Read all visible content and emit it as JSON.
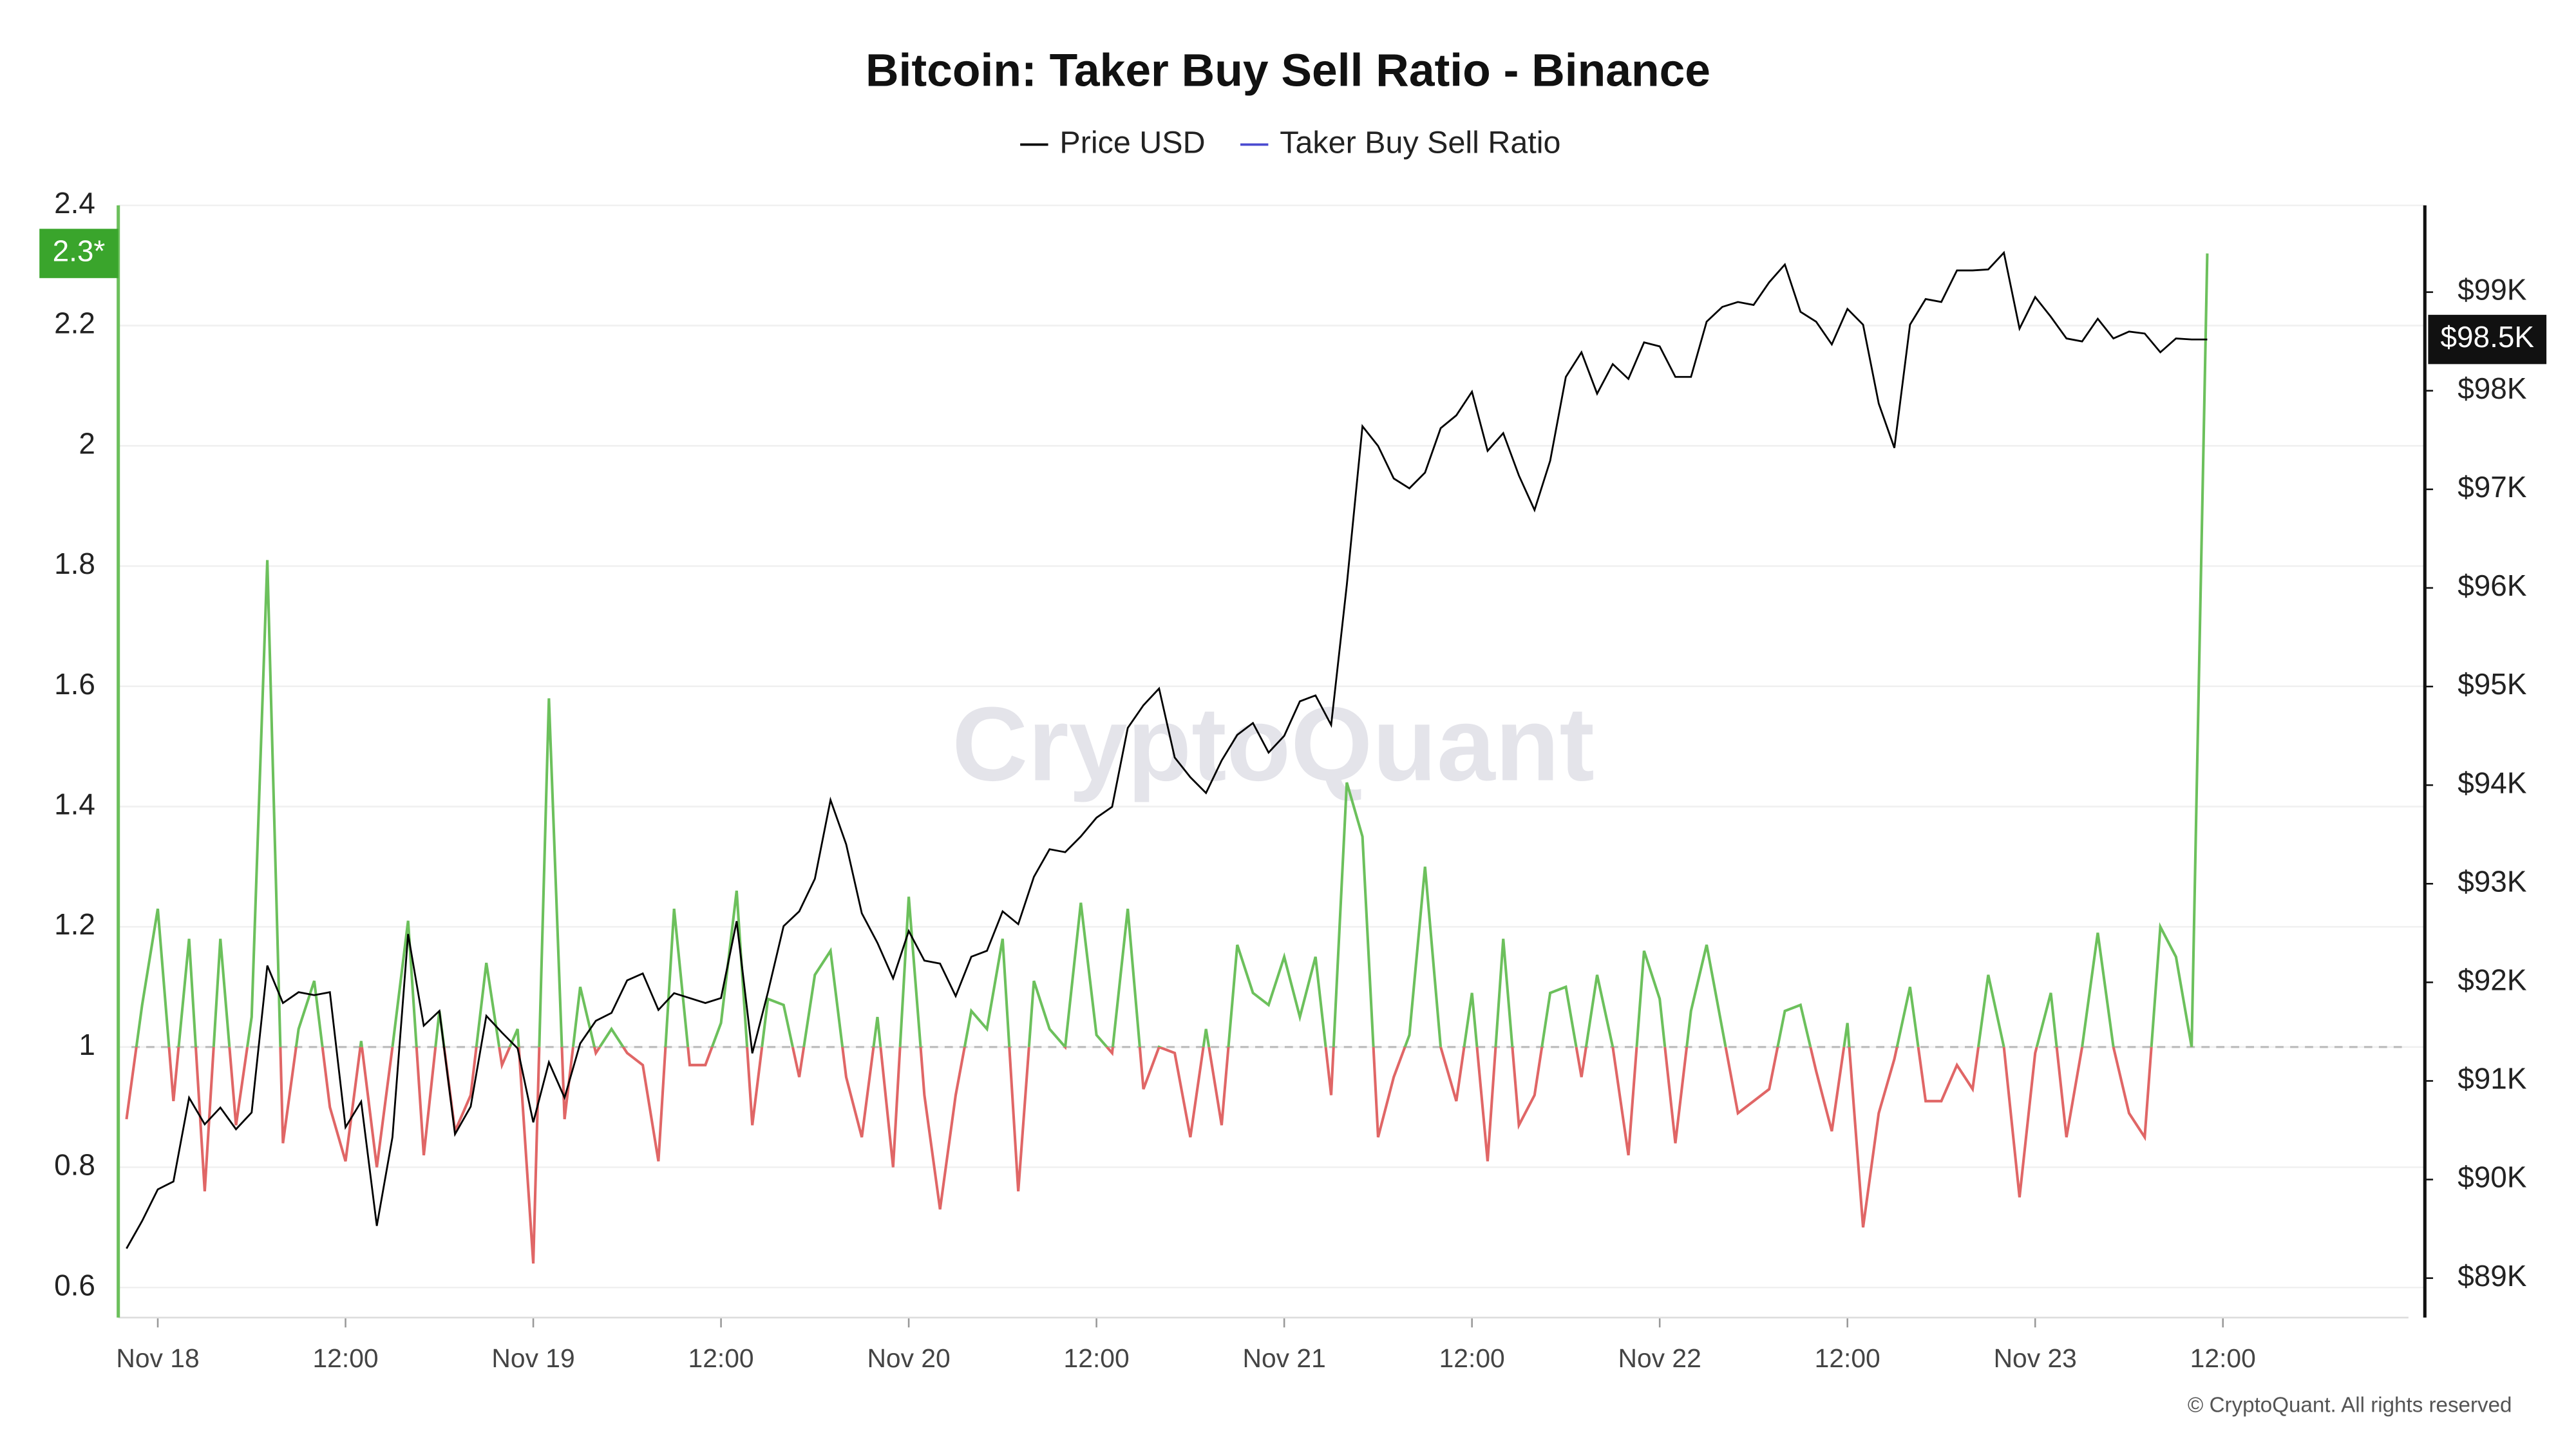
{
  "chart_data": {
    "type": "line",
    "title": "Bitcoin: Taker Buy Sell Ratio - Binance",
    "legend": "top",
    "grid": true,
    "watermark": "CryptoQuant",
    "footer": "© CryptoQuant. All rights reserved",
    "x": [
      "Nov 17 22:00",
      "Nov 17 23:00",
      "Nov 18 00:00",
      "Nov 18 01:00",
      "Nov 18 02:00",
      "Nov 18 03:00",
      "Nov 18 04:00",
      "Nov 18 05:00",
      "Nov 18 06:00",
      "Nov 18 07:00",
      "Nov 18 08:00",
      "Nov 18 09:00",
      "Nov 18 10:00",
      "Nov 18 11:00",
      "Nov 18 12:00",
      "Nov 18 13:00",
      "Nov 18 14:00",
      "Nov 18 15:00",
      "Nov 18 16:00",
      "Nov 18 17:00",
      "Nov 18 18:00",
      "Nov 18 19:00",
      "Nov 18 20:00",
      "Nov 18 21:00",
      "Nov 18 22:00",
      "Nov 18 23:00",
      "Nov 19 00:00",
      "Nov 19 01:00",
      "Nov 19 02:00",
      "Nov 19 03:00",
      "Nov 19 04:00",
      "Nov 19 05:00",
      "Nov 19 06:00",
      "Nov 19 07:00",
      "Nov 19 08:00",
      "Nov 19 09:00",
      "Nov 19 10:00",
      "Nov 19 11:00",
      "Nov 19 12:00",
      "Nov 19 13:00",
      "Nov 19 14:00",
      "Nov 19 15:00",
      "Nov 19 16:00",
      "Nov 19 17:00",
      "Nov 19 18:00",
      "Nov 19 19:00",
      "Nov 19 20:00",
      "Nov 19 21:00",
      "Nov 19 22:00",
      "Nov 19 23:00",
      "Nov 20 00:00",
      "Nov 20 01:00",
      "Nov 20 02:00",
      "Nov 20 03:00",
      "Nov 20 04:00",
      "Nov 20 05:00",
      "Nov 20 06:00",
      "Nov 20 07:00",
      "Nov 20 08:00",
      "Nov 20 09:00",
      "Nov 20 10:00",
      "Nov 20 11:00",
      "Nov 20 12:00",
      "Nov 20 13:00",
      "Nov 20 14:00",
      "Nov 20 15:00",
      "Nov 20 16:00",
      "Nov 20 17:00",
      "Nov 20 18:00",
      "Nov 20 19:00",
      "Nov 20 20:00",
      "Nov 20 21:00",
      "Nov 20 22:00",
      "Nov 20 23:00",
      "Nov 21 00:00",
      "Nov 21 01:00",
      "Nov 21 02:00",
      "Nov 21 03:00",
      "Nov 21 04:00",
      "Nov 21 05:00",
      "Nov 21 06:00",
      "Nov 21 07:00",
      "Nov 21 08:00",
      "Nov 21 09:00",
      "Nov 21 10:00",
      "Nov 21 11:00",
      "Nov 21 12:00",
      "Nov 21 13:00",
      "Nov 21 14:00",
      "Nov 21 15:00",
      "Nov 21 16:00",
      "Nov 21 17:00",
      "Nov 21 18:00",
      "Nov 21 19:00",
      "Nov 21 20:00",
      "Nov 21 21:00",
      "Nov 21 22:00",
      "Nov 21 23:00",
      "Nov 22 00:00",
      "Nov 22 01:00",
      "Nov 22 02:00",
      "Nov 22 03:00",
      "Nov 22 04:00",
      "Nov 22 05:00",
      "Nov 22 06:00",
      "Nov 22 07:00",
      "Nov 22 08:00",
      "Nov 22 09:00",
      "Nov 22 10:00",
      "Nov 22 11:00",
      "Nov 22 12:00",
      "Nov 22 13:00",
      "Nov 22 14:00",
      "Nov 22 15:00",
      "Nov 22 16:00",
      "Nov 22 17:00",
      "Nov 22 18:00",
      "Nov 22 19:00",
      "Nov 22 20:00",
      "Nov 22 21:00",
      "Nov 22 22:00",
      "Nov 22 23:00",
      "Nov 23 00:00",
      "Nov 23 01:00",
      "Nov 23 02:00",
      "Nov 23 03:00",
      "Nov 23 04:00",
      "Nov 23 05:00",
      "Nov 23 06:00",
      "Nov 23 07:00",
      "Nov 23 08:00",
      "Nov 23 09:00",
      "Nov 23 10:00",
      "Nov 23 11:00"
    ],
    "series": [
      {
        "name": "Price USD",
        "color": "#000000",
        "axis": "y2",
        "current_label": "$98.5K",
        "values": [
          89300,
          89580,
          89900,
          89980,
          90830,
          90560,
          90730,
          90510,
          90680,
          92170,
          91790,
          91900,
          91870,
          91900,
          90530,
          90790,
          89530,
          90430,
          92490,
          91560,
          91710,
          90460,
          90740,
          91660,
          91490,
          91330,
          90580,
          91190,
          90830,
          91380,
          91610,
          91690,
          92020,
          92090,
          91720,
          91890,
          91840,
          91790,
          91840,
          92620,
          91280,
          91900,
          92570,
          92720,
          93050,
          93850,
          93400,
          92700,
          92400,
          92040,
          92520,
          92220,
          92190,
          91860,
          92260,
          92320,
          92720,
          92590,
          93070,
          93350,
          93320,
          93480,
          93670,
          93780,
          94580,
          94810,
          94980,
          94280,
          94080,
          93920,
          94250,
          94510,
          94630,
          94330,
          94500,
          94850,
          94910,
          94610,
          96030,
          97640,
          97440,
          97110,
          97010,
          97170,
          97620,
          97750,
          97990,
          97390,
          97570,
          97140,
          96790,
          97290,
          98140,
          98390,
          97970,
          98270,
          98120,
          98490,
          98450,
          98140,
          98140,
          98700,
          98850,
          98900,
          98870,
          99100,
          99280,
          98800,
          98700,
          98470,
          98830,
          98670,
          97870,
          97420,
          98670,
          98930,
          98900,
          99220,
          99220,
          99230,
          99400,
          98630,
          98950,
          98750,
          98530,
          98500,
          98730,
          98530,
          98600,
          98580,
          98390,
          98530,
          98520,
          98520
        ]
      },
      {
        "name": "Taker Buy Sell Ratio",
        "color": "#4a4ad0",
        "above_color": "#6cc05c",
        "below_color": "#e06666",
        "threshold": 1,
        "current_label": "2.3*",
        "values": [
          0.88,
          1.07,
          1.23,
          0.91,
          1.18,
          0.76,
          1.18,
          0.87,
          1.05,
          1.81,
          0.84,
          1.03,
          1.11,
          0.9,
          0.81,
          1.01,
          0.8,
          1.0,
          1.21,
          0.82,
          1.06,
          0.86,
          0.92,
          1.14,
          0.97,
          1.03,
          0.64,
          1.58,
          0.88,
          1.1,
          0.99,
          1.03,
          0.99,
          0.97,
          0.81,
          1.23,
          0.97,
          0.97,
          1.04,
          1.26,
          0.87,
          1.08,
          1.07,
          0.95,
          1.12,
          1.16,
          0.95,
          0.85,
          1.05,
          0.8,
          1.25,
          0.92,
          0.73,
          0.92,
          1.06,
          1.03,
          1.18,
          0.76,
          1.11,
          1.03,
          1.0,
          1.24,
          1.02,
          0.99,
          1.23,
          0.93,
          1.0,
          0.99,
          0.85,
          1.03,
          0.87,
          1.17,
          1.09,
          1.07,
          1.15,
          1.05,
          1.15,
          0.92,
          1.44,
          1.35,
          0.85,
          0.95,
          1.02,
          1.3,
          1.0,
          0.91,
          1.09,
          0.81,
          1.18,
          0.87,
          0.92,
          1.09,
          1.1,
          0.95,
          1.12,
          1.0,
          0.82,
          1.16,
          1.08,
          0.84,
          1.06,
          1.17,
          1.03,
          0.89,
          0.91,
          0.93,
          1.06,
          1.07,
          0.96,
          0.86,
          1.04,
          0.7,
          0.89,
          0.98,
          1.1,
          0.91,
          0.91,
          0.97,
          0.93,
          1.12,
          1.0,
          0.75,
          0.99,
          1.09,
          0.85,
          1.0,
          1.19,
          1.0,
          0.89,
          0.85,
          1.2,
          1.15,
          1.0,
          2.32
        ]
      }
    ],
    "ylim": [
      0.55,
      2.4
    ],
    "yticks": [
      0.6,
      0.8,
      1,
      1.2,
      1.4,
      1.6,
      1.8,
      2,
      2.2,
      2.4
    ],
    "y2lim": [
      88600,
      99880
    ],
    "y2ticks": [
      {
        "value": 89000,
        "label": "$89K"
      },
      {
        "value": 90000,
        "label": "$90K"
      },
      {
        "value": 91000,
        "label": "$91K"
      },
      {
        "value": 92000,
        "label": "$92K"
      },
      {
        "value": 93000,
        "label": "$93K"
      },
      {
        "value": 94000,
        "label": "$94K"
      },
      {
        "value": 95000,
        "label": "$95K"
      },
      {
        "value": 96000,
        "label": "$96K"
      },
      {
        "value": 97000,
        "label": "$97K"
      },
      {
        "value": 98000,
        "label": "$98K"
      },
      {
        "value": 99000,
        "label": "$99K"
      }
    ],
    "xticks": [
      {
        "value": "Nov 18 00:00",
        "label": "Nov 18"
      },
      {
        "value": "Nov 18 12:00",
        "label": "12:00"
      },
      {
        "value": "Nov 19 00:00",
        "label": "Nov 19"
      },
      {
        "value": "Nov 19 12:00",
        "label": "12:00"
      },
      {
        "value": "Nov 20 00:00",
        "label": "Nov 20"
      },
      {
        "value": "Nov 20 12:00",
        "label": "12:00"
      },
      {
        "value": "Nov 21 00:00",
        "label": "Nov 21"
      },
      {
        "value": "Nov 21 12:00",
        "label": "12:00"
      },
      {
        "value": "Nov 22 00:00",
        "label": "Nov 22"
      },
      {
        "value": "Nov 22 12:00",
        "label": "12:00"
      },
      {
        "value": "Nov 23 00:00",
        "label": "Nov 23"
      },
      {
        "value": "Nov 23 12:00",
        "label": "12:00"
      }
    ]
  }
}
